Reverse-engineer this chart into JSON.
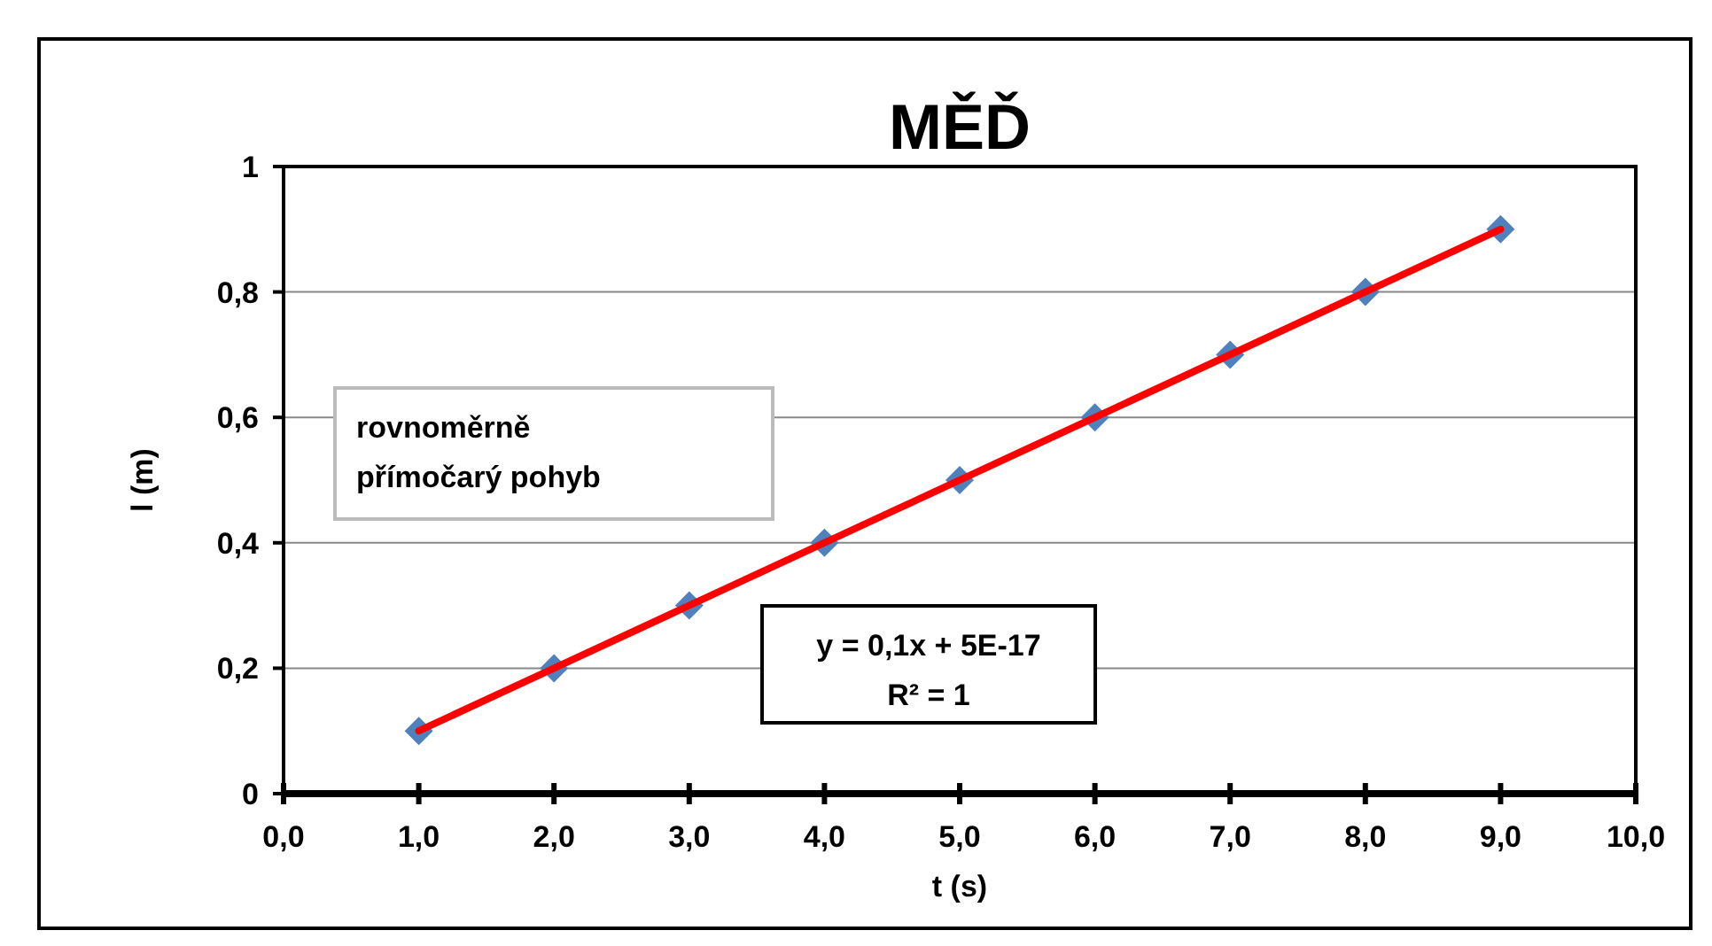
{
  "chart_data": {
    "type": "scatter",
    "title": "MĚĎ",
    "xlabel": "t (s)",
    "ylabel": "l (m)",
    "x": [
      1,
      2,
      3,
      4,
      5,
      6,
      7,
      8,
      9
    ],
    "series": [
      {
        "color": "#4f81bd",
        "values": [
          0.1,
          0.2,
          0.3,
          0.4,
          0.5,
          0.6,
          0.7,
          0.8,
          0.9
        ],
        "marker": "diamond"
      },
      {
        "type": "line",
        "color": "#ff0000",
        "x": [
          1,
          9
        ],
        "values": [
          0.1,
          0.9
        ]
      }
    ],
    "xlim": [
      0,
      10
    ],
    "xticks": [
      {
        "value": 0,
        "label": "0,0"
      },
      {
        "value": 1,
        "label": "1,0"
      },
      {
        "value": 2,
        "label": "2,0"
      },
      {
        "value": 3,
        "label": "3,0"
      },
      {
        "value": 4,
        "label": "4,0"
      },
      {
        "value": 5,
        "label": "5,0"
      },
      {
        "value": 6,
        "label": "6,0"
      },
      {
        "value": 7,
        "label": "7,0"
      },
      {
        "value": 8,
        "label": "8,0"
      },
      {
        "value": 9,
        "label": "9,0"
      },
      {
        "value": 10,
        "label": "10,0"
      }
    ],
    "ylim": [
      0,
      1
    ],
    "yticks": [
      0,
      {
        "value": 0.2,
        "label": "0,2"
      },
      {
        "value": 0.4,
        "label": "0,4"
      },
      {
        "value": 0.6,
        "label": "0,6"
      },
      {
        "value": 0.8,
        "label": "0,8"
      },
      1
    ],
    "grid": "y",
    "annotations": [
      "rovnoměrně\npřímočarý pohyb",
      "y = 0,1x + 5E-17\nR² = 1"
    ]
  }
}
